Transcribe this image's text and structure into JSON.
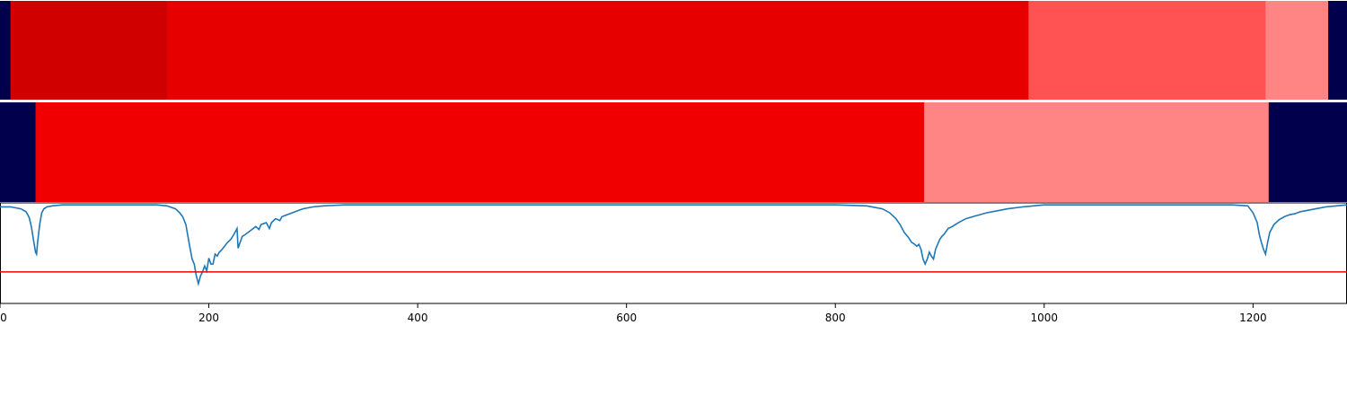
{
  "chart_data": [
    {
      "type": "heatmap",
      "colorscale": "seismic",
      "x_range": [
        0,
        1290
      ],
      "segments": [
        {
          "start": 0,
          "end": 10,
          "value": 0.0
        },
        {
          "start": 10,
          "end": 160,
          "value": 0.84
        },
        {
          "start": 160,
          "end": 985,
          "value": 0.8
        },
        {
          "start": 985,
          "end": 1212,
          "value": 0.67
        },
        {
          "start": 1212,
          "end": 1272,
          "value": 0.62
        },
        {
          "start": 1272,
          "end": 1290,
          "value": 0.0
        }
      ]
    },
    {
      "type": "heatmap",
      "colorscale": "seismic",
      "x_range": [
        0,
        1290
      ],
      "segments": [
        {
          "start": 0,
          "end": 34,
          "value": 0.0
        },
        {
          "start": 34,
          "end": 885,
          "value": 0.78
        },
        {
          "start": 885,
          "end": 1215,
          "value": 0.62
        },
        {
          "start": 1215,
          "end": 1290,
          "value": 0.0
        }
      ]
    },
    {
      "type": "line",
      "xlim": [
        0,
        1290
      ],
      "ylim": [
        -1.0,
        0.02
      ],
      "threshold": -0.68,
      "threshold_color": "#ee0000",
      "line_color": "#1f77b4",
      "xticks": [
        "0",
        "200",
        "400",
        "600",
        "800",
        "1000",
        "1200"
      ],
      "xtick_values": [
        0,
        200,
        400,
        600,
        800,
        1000,
        1200
      ],
      "series": [
        {
          "x": [
            0,
            10,
            20,
            25,
            28,
            30,
            32,
            34,
            35,
            36,
            38,
            40,
            42,
            45,
            50,
            60,
            150,
            160,
            168,
            172,
            175,
            178,
            180,
            182,
            184,
            186,
            188,
            190,
            192,
            194,
            196,
            198,
            200,
            202,
            204,
            206,
            208,
            210,
            212,
            215,
            218,
            221,
            224,
            227,
            228,
            230,
            232,
            235,
            240,
            245,
            248,
            250,
            255,
            258,
            260,
            262,
            264,
            268,
            270,
            275,
            280,
            285,
            290,
            300,
            310,
            320,
            330,
            340,
            700,
            800,
            830,
            845,
            852,
            858,
            862,
            866,
            870,
            873,
            876,
            878,
            880,
            882,
            884,
            886,
            888,
            890,
            892,
            894,
            896,
            898,
            900,
            902,
            904,
            908,
            912,
            918,
            925,
            935,
            945,
            955,
            965,
            980,
            1000,
            1100,
            1180,
            1195,
            1200,
            1204,
            1206,
            1208,
            1210,
            1212,
            1214,
            1216,
            1220,
            1225,
            1230,
            1235,
            1240,
            1245,
            1250,
            1255,
            1260,
            1270,
            1280,
            1290
          ],
          "y": [
            -0.02,
            -0.02,
            -0.04,
            -0.07,
            -0.13,
            -0.22,
            -0.35,
            -0.48,
            -0.5,
            -0.38,
            -0.2,
            -0.08,
            -0.04,
            -0.02,
            -0.01,
            0.0,
            0.0,
            -0.01,
            -0.04,
            -0.08,
            -0.12,
            -0.2,
            -0.32,
            -0.44,
            -0.55,
            -0.6,
            -0.72,
            -0.8,
            -0.72,
            -0.68,
            -0.62,
            -0.67,
            -0.54,
            -0.6,
            -0.6,
            -0.5,
            -0.52,
            -0.48,
            -0.46,
            -0.42,
            -0.38,
            -0.35,
            -0.3,
            -0.24,
            -0.44,
            -0.38,
            -0.32,
            -0.3,
            -0.26,
            -0.22,
            -0.25,
            -0.2,
            -0.18,
            -0.24,
            -0.18,
            -0.16,
            -0.14,
            -0.16,
            -0.12,
            -0.1,
            -0.08,
            -0.06,
            -0.04,
            -0.02,
            -0.01,
            -0.005,
            0.0,
            0.0,
            0.0,
            0.0,
            -0.01,
            -0.04,
            -0.08,
            -0.14,
            -0.2,
            -0.28,
            -0.33,
            -0.38,
            -0.4,
            -0.42,
            -0.4,
            -0.45,
            -0.55,
            -0.6,
            -0.55,
            -0.48,
            -0.52,
            -0.55,
            -0.45,
            -0.4,
            -0.35,
            -0.32,
            -0.3,
            -0.24,
            -0.22,
            -0.18,
            -0.14,
            -0.11,
            -0.08,
            -0.06,
            -0.04,
            -0.02,
            0.0,
            0.0,
            0.0,
            -0.01,
            -0.08,
            -0.18,
            -0.3,
            -0.38,
            -0.45,
            -0.5,
            -0.38,
            -0.28,
            -0.2,
            -0.15,
            -0.12,
            -0.1,
            -0.09,
            -0.07,
            -0.06,
            -0.05,
            -0.04,
            -0.02,
            -0.01,
            0.0
          ]
        }
      ]
    }
  ]
}
